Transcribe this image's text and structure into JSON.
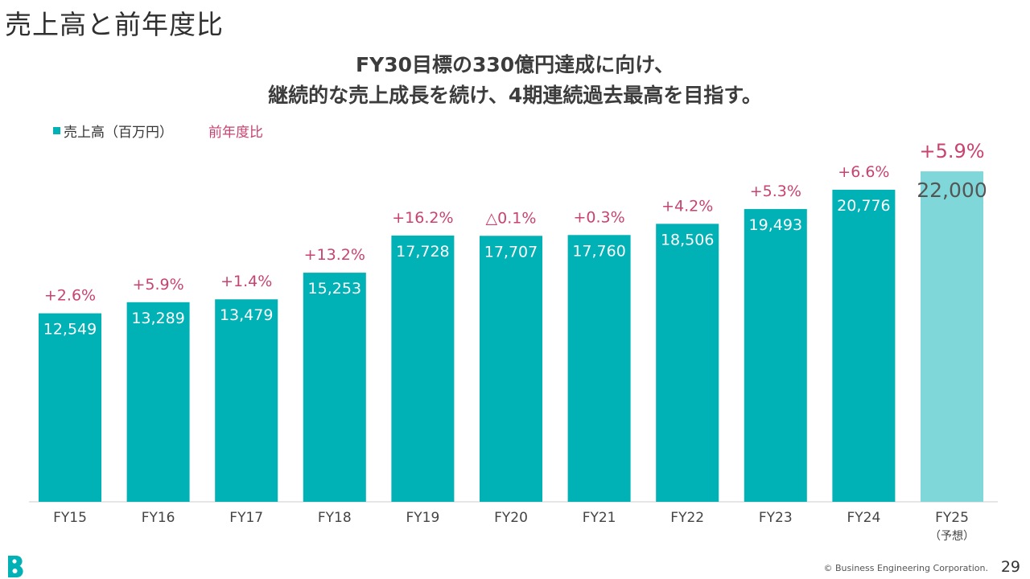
{
  "page": {
    "title": "売上高と前年度比",
    "headline_line1": "FY30目標の330億円達成に向け、",
    "headline_line2": "継続的な売上成長を続け、4期連続過去最高を目指す。",
    "footer": "© Business Engineering Corporation.",
    "page_number": "29"
  },
  "colors": {
    "bar": "#00b1b5",
    "bar_forecast": "#7fd7d9",
    "yoy_label": "#c8436e",
    "axis": "#cccccc"
  },
  "chart_data": {
    "type": "bar",
    "categories": [
      "FY15",
      "FY16",
      "FY17",
      "FY18",
      "FY19",
      "FY20",
      "FY21",
      "FY22",
      "FY23",
      "FY24",
      "FY25"
    ],
    "category_notes": [
      "",
      "",
      "",
      "",
      "",
      "",
      "",
      "",
      "",
      "",
      "（予想）"
    ],
    "series": [
      {
        "name": "売上高（百万円）",
        "values": [
          12549,
          13289,
          13479,
          15253,
          17728,
          17707,
          17760,
          18506,
          19493,
          20776,
          22000
        ],
        "labels": [
          "12,549",
          "13,289",
          "13,479",
          "15,253",
          "17,728",
          "17,707",
          "17,760",
          "18,506",
          "19,493",
          "20,776",
          "22,000"
        ]
      }
    ],
    "yoy": {
      "name": "前年度比",
      "labels": [
        "+2.6%",
        "+5.9%",
        "+1.4%",
        "+13.2%",
        "+16.2%",
        "△0.1%",
        "+0.3%",
        "+4.2%",
        "+5.3%",
        "+6.6%",
        "+5.9%"
      ]
    },
    "forecast_index": 10,
    "ylim": [
      0,
      22700
    ],
    "legend": "top-left",
    "grid": false
  }
}
